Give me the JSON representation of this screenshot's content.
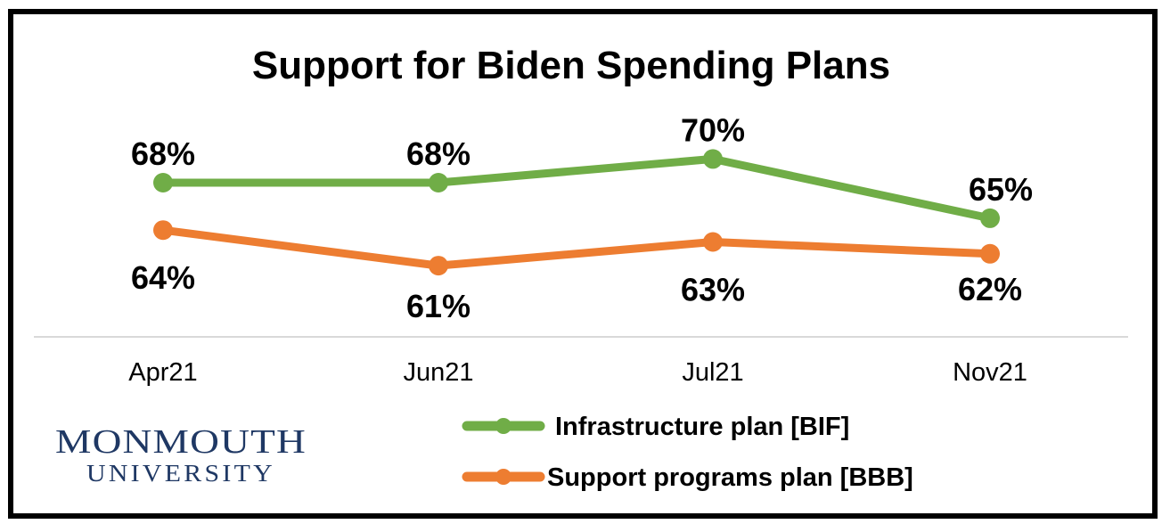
{
  "chart_data": {
    "type": "line",
    "title": "Support for Biden Spending Plans",
    "categories": [
      "Apr21",
      "Jun21",
      "Jul21",
      "Nov21"
    ],
    "series": [
      {
        "name": "Infrastructure plan [BIF]",
        "color": "#70ad47",
        "values": [
          68,
          68,
          70,
          65
        ],
        "labels": [
          "68%",
          "68%",
          "70%",
          "65%"
        ]
      },
      {
        "name": "Support programs plan [BBB]",
        "color": "#ed7d31",
        "values": [
          64,
          61,
          63,
          62
        ],
        "labels": [
          "64%",
          "61%",
          "63%",
          "62%"
        ]
      }
    ],
    "xlabel": "",
    "ylabel": "",
    "ylim": [
      55,
      75
    ],
    "grid": false,
    "legend": "bottom-right"
  },
  "logo": {
    "line1": "MONMOUTH",
    "line2": "UNIVERSITY"
  }
}
